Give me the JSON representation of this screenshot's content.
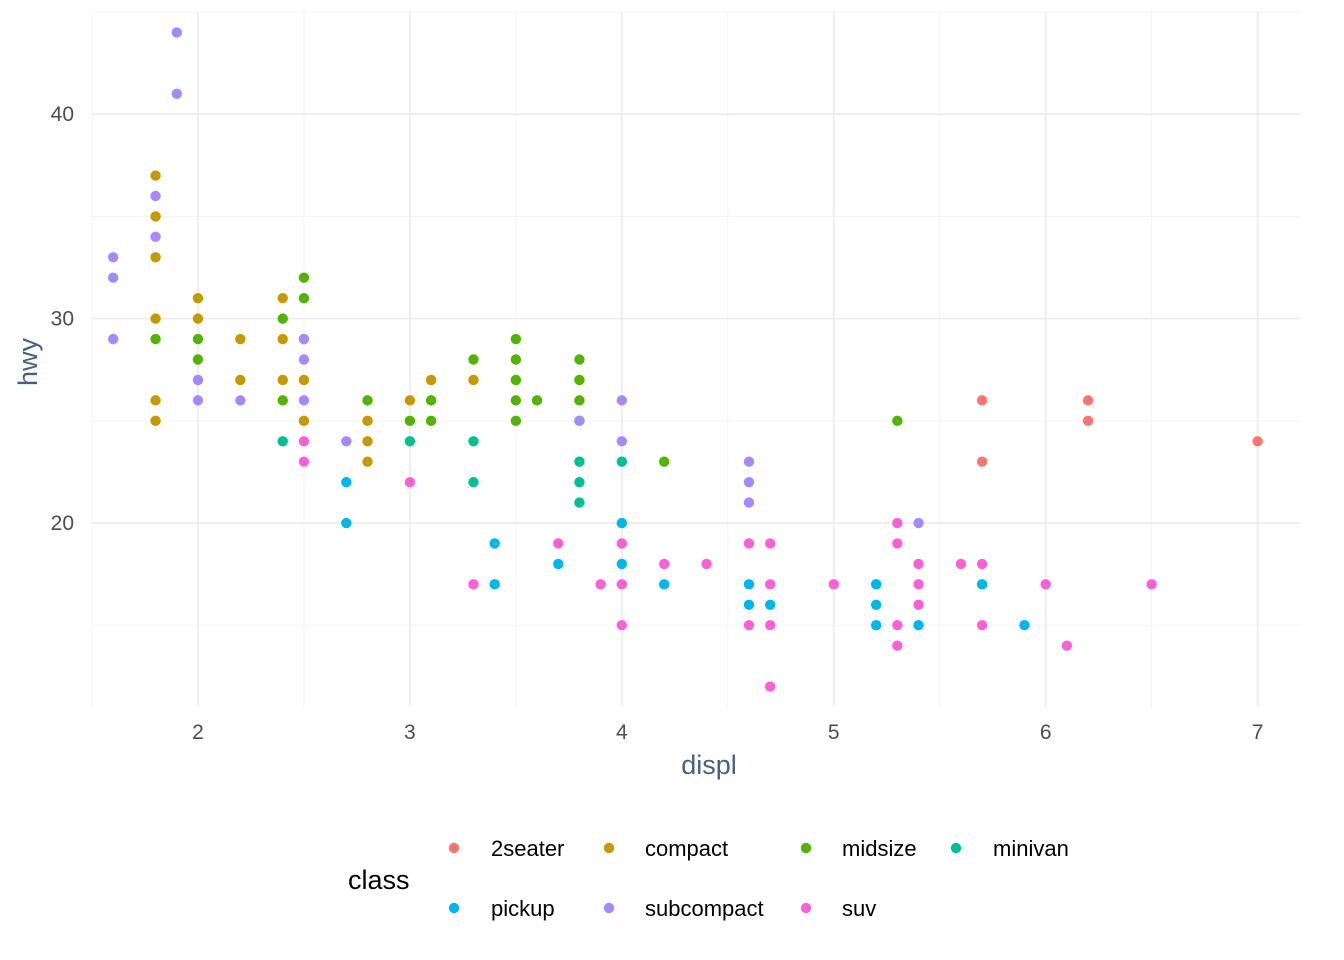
{
  "chart_data": {
    "type": "scatter",
    "xlabel": "displ",
    "ylabel": "hwy",
    "xlim": [
      1.5,
      7.2
    ],
    "ylim": [
      11,
      45
    ],
    "x_ticks": [
      2,
      3,
      4,
      5,
      6,
      7
    ],
    "y_ticks": [
      20,
      30,
      40
    ],
    "grid": true,
    "legend": {
      "title": "class",
      "position": "bottom",
      "entries": [
        "2seater",
        "compact",
        "midsize",
        "minivan",
        "pickup",
        "subcompact",
        "suv"
      ]
    },
    "colors": {
      "2seater": "#f8766d",
      "compact": "#c49a00",
      "midsize": "#53b400",
      "minivan": "#00c094",
      "pickup": "#00b6eb",
      "subcompact": "#a58aff",
      "suv": "#fb61d7"
    },
    "series": [
      {
        "name": "2seater",
        "points": [
          [
            5.7,
            26
          ],
          [
            5.7,
            23
          ],
          [
            6.2,
            26
          ],
          [
            6.2,
            25
          ],
          [
            7.0,
            24
          ]
        ]
      },
      {
        "name": "compact",
        "points": [
          [
            1.8,
            37
          ],
          [
            1.8,
            35
          ],
          [
            1.8,
            33
          ],
          [
            1.8,
            30
          ],
          [
            1.8,
            26
          ],
          [
            1.8,
            25
          ],
          [
            2.0,
            31
          ],
          [
            2.0,
            30
          ],
          [
            2.2,
            29
          ],
          [
            2.2,
            27
          ],
          [
            2.4,
            31
          ],
          [
            2.4,
            29
          ],
          [
            2.4,
            27
          ],
          [
            2.5,
            29
          ],
          [
            2.5,
            27
          ],
          [
            2.5,
            25
          ],
          [
            2.8,
            25
          ],
          [
            2.8,
            24
          ],
          [
            2.8,
            23
          ],
          [
            3.0,
            26
          ],
          [
            3.1,
            27
          ],
          [
            3.3,
            27
          ]
        ]
      },
      {
        "name": "midsize",
        "points": [
          [
            1.8,
            29
          ],
          [
            2.0,
            29
          ],
          [
            2.0,
            28
          ],
          [
            2.4,
            30
          ],
          [
            2.4,
            26
          ],
          [
            2.5,
            32
          ],
          [
            2.5,
            31
          ],
          [
            2.8,
            26
          ],
          [
            3.0,
            25
          ],
          [
            3.1,
            26
          ],
          [
            3.1,
            25
          ],
          [
            3.3,
            28
          ],
          [
            3.5,
            29
          ],
          [
            3.5,
            28
          ],
          [
            3.5,
            27
          ],
          [
            3.5,
            26
          ],
          [
            3.5,
            25
          ],
          [
            3.6,
            26
          ],
          [
            3.8,
            28
          ],
          [
            3.8,
            27
          ],
          [
            3.8,
            26
          ],
          [
            3.8,
            25
          ],
          [
            4.2,
            23
          ],
          [
            5.3,
            25
          ]
        ]
      },
      {
        "name": "minivan",
        "points": [
          [
            2.4,
            24
          ],
          [
            3.0,
            24
          ],
          [
            3.3,
            24
          ],
          [
            3.3,
            22
          ],
          [
            3.8,
            23
          ],
          [
            3.8,
            22
          ],
          [
            3.8,
            21
          ],
          [
            4.0,
            23
          ]
        ]
      },
      {
        "name": "pickup",
        "points": [
          [
            2.7,
            22
          ],
          [
            2.7,
            20
          ],
          [
            3.4,
            19
          ],
          [
            3.4,
            17
          ],
          [
            3.7,
            18
          ],
          [
            4.0,
            20
          ],
          [
            4.0,
            18
          ],
          [
            4.2,
            17
          ],
          [
            4.6,
            17
          ],
          [
            4.6,
            16
          ],
          [
            4.7,
            16
          ],
          [
            5.2,
            17
          ],
          [
            5.2,
            16
          ],
          [
            5.2,
            15
          ],
          [
            5.4,
            15
          ],
          [
            5.7,
            17
          ],
          [
            5.9,
            15
          ]
        ]
      },
      {
        "name": "subcompact",
        "points": [
          [
            1.6,
            33
          ],
          [
            1.6,
            32
          ],
          [
            1.6,
            29
          ],
          [
            1.8,
            36
          ],
          [
            1.8,
            34
          ],
          [
            1.9,
            44
          ],
          [
            1.9,
            41
          ],
          [
            2.0,
            27
          ],
          [
            2.0,
            26
          ],
          [
            2.2,
            26
          ],
          [
            2.5,
            29
          ],
          [
            2.5,
            28
          ],
          [
            2.5,
            26
          ],
          [
            2.7,
            24
          ],
          [
            3.8,
            25
          ],
          [
            4.0,
            26
          ],
          [
            4.0,
            24
          ],
          [
            4.6,
            23
          ],
          [
            4.6,
            22
          ],
          [
            4.6,
            21
          ],
          [
            5.4,
            20
          ]
        ]
      },
      {
        "name": "suv",
        "points": [
          [
            2.5,
            24
          ],
          [
            2.5,
            23
          ],
          [
            3.0,
            22
          ],
          [
            3.3,
            17
          ],
          [
            3.7,
            19
          ],
          [
            3.9,
            17
          ],
          [
            4.0,
            19
          ],
          [
            4.0,
            17
          ],
          [
            4.0,
            15
          ],
          [
            4.2,
            18
          ],
          [
            4.4,
            18
          ],
          [
            4.6,
            19
          ],
          [
            4.6,
            15
          ],
          [
            4.7,
            19
          ],
          [
            4.7,
            17
          ],
          [
            4.7,
            15
          ],
          [
            4.7,
            12
          ],
          [
            5.0,
            17
          ],
          [
            5.3,
            20
          ],
          [
            5.3,
            19
          ],
          [
            5.3,
            15
          ],
          [
            5.3,
            14
          ],
          [
            5.4,
            18
          ],
          [
            5.4,
            17
          ],
          [
            5.4,
            16
          ],
          [
            5.6,
            18
          ],
          [
            5.7,
            18
          ],
          [
            5.7,
            15
          ],
          [
            6.0,
            17
          ],
          [
            6.1,
            14
          ],
          [
            6.5,
            17
          ]
        ]
      }
    ]
  }
}
